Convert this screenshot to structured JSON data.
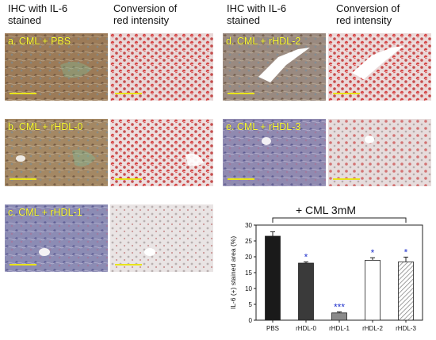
{
  "headers": {
    "left_ihc": "IHC with IL-6\nstained",
    "left_conv": "Conversion of\nred intensity",
    "right_ihc": "IHC with IL-6\nstained",
    "right_conv": "Conversion of\nred intensity"
  },
  "panels": {
    "a": {
      "label": "a. CML + PBS"
    },
    "b": {
      "label": "b. CML + rHDL-0"
    },
    "c": {
      "label": "c. CML + rHDL-1"
    },
    "d": {
      "label": "d. CML + rHDL-2"
    },
    "e": {
      "label": "e. CML + rHDL-3"
    }
  },
  "colors": {
    "ihc_brown": "#9c7b58",
    "ihc_blue": "#8c8cb4",
    "red_conv": "#c62828",
    "label_yellow": "#ffff33",
    "sig_blue": "#2233cc"
  },
  "chart_data": {
    "type": "bar",
    "title": "+ CML 3mM",
    "categories": [
      "PBS",
      "rHDL-0",
      "rHDL-1",
      "rHDL-2",
      "rHDL-3"
    ],
    "values": [
      26.5,
      18.0,
      2.3,
      18.9,
      18.4
    ],
    "errors": [
      1.4,
      0.4,
      0.3,
      0.8,
      1.5
    ],
    "significance": [
      "",
      "*",
      "***",
      "*",
      "*"
    ],
    "bar_fills": [
      "black",
      "dark-gray",
      "gray",
      "white",
      "hatched"
    ],
    "ylabel": "IL-6 (+) stained area (%)",
    "yticks": [
      "0",
      "5",
      "10",
      "15",
      "20",
      "25",
      "30"
    ],
    "ylim": [
      0,
      30
    ]
  }
}
